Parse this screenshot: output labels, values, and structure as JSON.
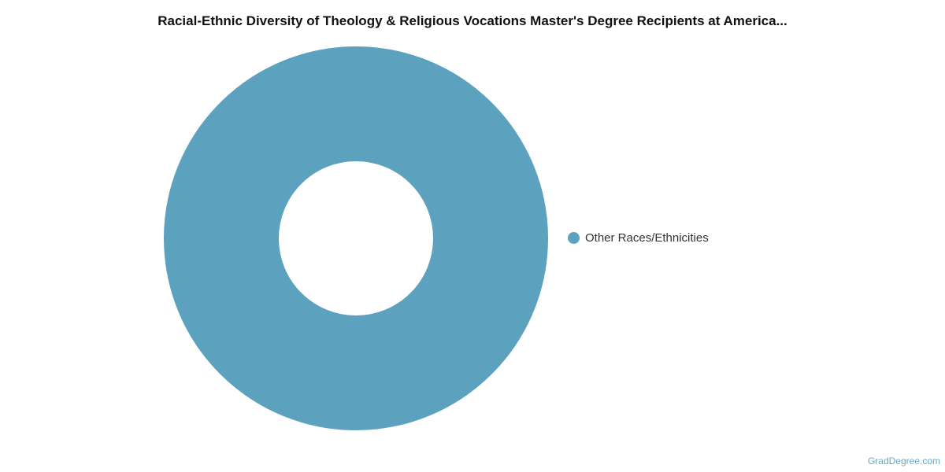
{
  "chart_data": {
    "type": "pie",
    "variant": "donut",
    "title": "Racial-Ethnic Diversity of Theology & Religious Vocations Master's Degree Recipients at America...",
    "categories": [
      "Other Races/Ethnicities"
    ],
    "values": [
      100
    ],
    "colors": [
      "#5ca2bf"
    ],
    "legend_position": "right"
  },
  "credit": "GradDegree.com"
}
